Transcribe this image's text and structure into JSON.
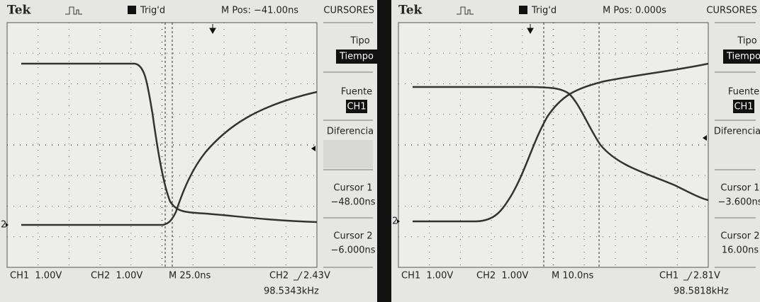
{
  "scopes": [
    {
      "brand": "Tek",
      "status": "Trig'd",
      "position": "M Pos: −41.00ns",
      "channel_marker": "2",
      "menu": {
        "title": "CURSORES",
        "type_label": "Tipo",
        "type_value": "Tiempo",
        "source_label": "Fuente",
        "source_value": "CH1",
        "mode": "Diferencia",
        "cursor1_label": "Cursor 1",
        "cursor1_value": "−48.00ns",
        "cursor2_label": "Cursor 2",
        "cursor2_value": "−6.000ns"
      },
      "footer": {
        "ch1_scale": "CH1  1.00V",
        "ch2_scale": "CH2  1.00V",
        "timebase": "M 25.0ns",
        "trigger_source": "CH2",
        "trigger_level": "2.43V",
        "frequency": "98.5343kHz"
      }
    },
    {
      "brand": "Tek",
      "status": "Trig'd",
      "position": "M Pos: 0.000s",
      "channel_marker": "2",
      "menu": {
        "title": "CURSORES",
        "type_label": "Tipo",
        "type_value": "Tiempo",
        "source_label": "Fuente",
        "source_value": "CH1",
        "mode": "Diferencia",
        "cursor1_label": "Cursor 1",
        "cursor1_value": "−3.600ns",
        "cursor2_label": "Cursor 2",
        "cursor2_value": "16.00ns"
      },
      "footer": {
        "ch1_scale": "CH1  1.00V",
        "ch2_scale": "CH2  1.00V",
        "timebase": "M 10.0ns",
        "trigger_source": "CH1",
        "trigger_level": "2.81V",
        "frequency": "98.5818kHz"
      }
    }
  ]
}
